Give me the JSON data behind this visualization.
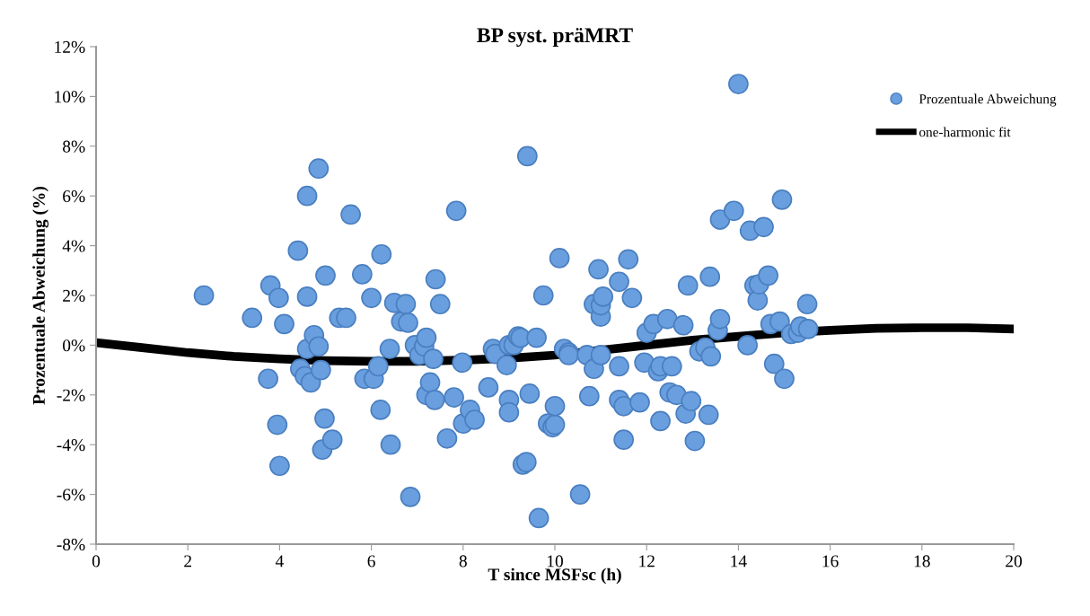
{
  "chart_data": {
    "type": "scatter",
    "title": "BP syst. präMRT",
    "xlabel": "T since MSFsc (h)",
    "ylabel": "Prozentuale Abweichung (%)",
    "xlim": [
      0,
      20
    ],
    "xticks": [
      0,
      2,
      4,
      6,
      8,
      10,
      12,
      14,
      16,
      18,
      20
    ],
    "ylim": [
      -8,
      12
    ],
    "yticks": [
      {
        "value": -8,
        "label": "-8%"
      },
      {
        "value": -6,
        "label": "-6%"
      },
      {
        "value": -4,
        "label": "-4%"
      },
      {
        "value": -2,
        "label": "-2%"
      },
      {
        "value": 0,
        "label": "0%"
      },
      {
        "value": 2,
        "label": "2%"
      },
      {
        "value": 4,
        "label": "4%"
      },
      {
        "value": 6,
        "label": "6%"
      },
      {
        "value": 8,
        "label": "8%"
      },
      {
        "value": 10,
        "label": "10%"
      },
      {
        "value": 12,
        "label": "12%"
      }
    ],
    "grid": false,
    "legend": "top right",
    "series": [
      {
        "name": "Prozentuale Abweichung",
        "marker": "circle",
        "color": "#6a9fdf",
        "x": [
          2.35,
          3.4,
          3.75,
          3.8,
          3.95,
          3.98,
          4.0,
          4.1,
          4.4,
          4.45,
          4.55,
          4.6,
          4.6,
          4.6,
          4.68,
          4.75,
          4.85,
          4.85,
          4.9,
          4.93,
          4.98,
          5.0,
          5.15,
          5.3,
          5.45,
          5.55,
          5.8,
          5.85,
          6.0,
          6.05,
          6.15,
          6.2,
          6.22,
          6.4,
          6.42,
          6.5,
          6.65,
          6.75,
          6.8,
          6.85,
          6.95,
          7.05,
          7.15,
          7.2,
          7.2,
          7.28,
          7.35,
          7.38,
          7.4,
          7.5,
          7.65,
          7.8,
          7.85,
          7.98,
          8.0,
          8.15,
          8.25,
          8.55,
          8.65,
          8.7,
          8.95,
          9.0,
          9.0,
          9.0,
          9.1,
          9.2,
          9.25,
          9.3,
          9.38,
          9.4,
          9.45,
          9.6,
          9.65,
          9.75,
          9.85,
          9.95,
          10.0,
          10.0,
          10.1,
          10.2,
          10.3,
          10.3,
          10.55,
          10.7,
          10.75,
          10.85,
          10.85,
          10.95,
          11.0,
          11.0,
          11.05,
          11.0,
          11.4,
          11.4,
          11.4,
          11.5,
          11.5,
          11.6,
          11.68,
          11.85,
          11.95,
          12.0,
          12.15,
          12.25,
          12.3,
          12.3,
          12.45,
          12.5,
          12.55,
          12.65,
          12.8,
          12.85,
          12.9,
          12.97,
          13.05,
          13.15,
          13.28,
          13.35,
          13.38,
          13.4,
          13.55,
          13.6,
          13.6,
          13.9,
          14.0,
          14.2,
          14.25,
          14.35,
          14.42,
          14.45,
          14.55,
          14.65,
          14.7,
          14.78,
          14.9,
          14.95,
          15.0,
          15.15,
          15.3,
          15.35,
          15.5,
          15.52
        ],
        "values": [
          2.0,
          1.1,
          -1.35,
          2.4,
          -3.2,
          1.9,
          -4.85,
          0.85,
          3.8,
          -0.95,
          -1.25,
          6.0,
          1.95,
          -0.15,
          -1.5,
          0.4,
          7.1,
          -0.05,
          -1.0,
          -4.2,
          -2.95,
          2.8,
          -3.8,
          1.1,
          1.1,
          5.25,
          2.85,
          -1.35,
          1.9,
          -1.35,
          -0.85,
          -2.6,
          3.65,
          -0.15,
          -4.0,
          1.7,
          0.95,
          1.65,
          0.9,
          -6.1,
          0.0,
          -0.4,
          -0.05,
          0.3,
          -2.0,
          -1.5,
          -0.55,
          -2.2,
          2.65,
          1.65,
          -3.75,
          -2.1,
          5.4,
          -0.7,
          -3.15,
          -2.6,
          -3.0,
          -1.7,
          -0.15,
          -0.35,
          -0.8,
          0.0,
          -2.2,
          -2.7,
          0.0,
          0.35,
          0.3,
          -4.8,
          -4.7,
          7.6,
          -1.95,
          0.3,
          -6.95,
          2.0,
          -3.15,
          -3.3,
          -3.2,
          -2.45,
          3.5,
          -0.15,
          -0.3,
          -0.4,
          -6.0,
          -0.4,
          -2.05,
          1.65,
          -0.95,
          3.05,
          1.15,
          1.6,
          1.95,
          -0.4,
          2.55,
          -0.85,
          -2.2,
          -3.8,
          -2.45,
          3.45,
          1.9,
          -2.3,
          -0.7,
          0.5,
          0.85,
          -1.05,
          -0.85,
          -3.05,
          1.05,
          -1.9,
          -0.85,
          -2.0,
          0.8,
          -2.75,
          2.4,
          -2.25,
          -3.85,
          -0.25,
          -0.1,
          -2.8,
          2.75,
          -0.45,
          0.6,
          1.05,
          5.05,
          5.4,
          10.5,
          0.0,
          4.6,
          2.4,
          1.8,
          2.45,
          4.75,
          2.8,
          0.85,
          -0.75,
          0.95,
          5.85,
          -1.35,
          0.45,
          0.5,
          0.75,
          1.65,
          0.65
        ]
      },
      {
        "name": "one-harmonic fit",
        "type": "line",
        "marker": "none",
        "line_style": "solid",
        "color": "#000000",
        "x": [
          0,
          1,
          2,
          3,
          4,
          5,
          6,
          7,
          8,
          9,
          10,
          11.7,
          12,
          13,
          14,
          15,
          16,
          17,
          18,
          19,
          20
        ],
        "values": [
          0.1,
          -0.1,
          -0.3,
          -0.45,
          -0.55,
          -0.62,
          -0.65,
          -0.65,
          -0.6,
          -0.52,
          -0.4,
          -0.06,
          0.0,
          0.2,
          0.35,
          0.5,
          0.6,
          0.68,
          0.7,
          0.7,
          0.65
        ]
      }
    ]
  }
}
